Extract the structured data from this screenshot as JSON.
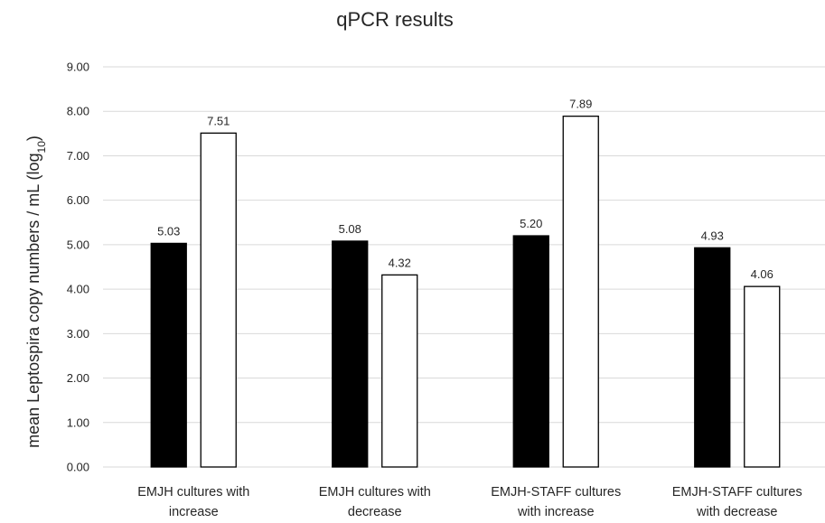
{
  "chart_data": {
    "type": "bar",
    "title": "qPCR results",
    "ylabel": {
      "main": "mean Leptospira copy numbers / mL (log",
      "sub": "10",
      "close": ")"
    },
    "xlabel": "",
    "ylim": [
      0,
      9
    ],
    "y_ticks": [
      "0.00",
      "1.00",
      "2.00",
      "3.00",
      "4.00",
      "5.00",
      "6.00",
      "7.00",
      "8.00",
      "9.00"
    ],
    "grid": true,
    "legend": "none",
    "categories": [
      [
        "EMJH cultures with",
        "increase"
      ],
      [
        "EMJH cultures with",
        "decrease"
      ],
      [
        "EMJH-STAFF cultures",
        "with increase"
      ],
      [
        "EMJH-STAFF cultures",
        "with decrease"
      ]
    ],
    "series": [
      {
        "color": "#000000",
        "values": [
          5.03,
          5.08,
          5.2,
          4.93
        ],
        "labels": [
          "5.03",
          "5.08",
          "5.20",
          "4.93"
        ]
      },
      {
        "color": "#ffffff",
        "values": [
          7.51,
          4.32,
          7.89,
          4.06
        ],
        "labels": [
          "7.51",
          "4.32",
          "7.89",
          "4.06"
        ]
      }
    ]
  }
}
